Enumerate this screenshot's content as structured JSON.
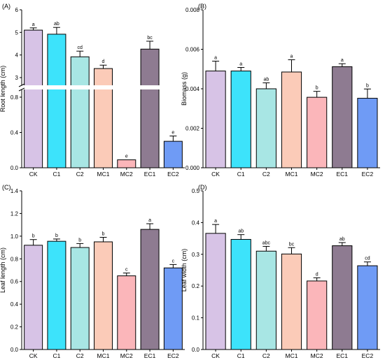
{
  "chart_data": [
    {
      "type": "bar",
      "panel": "(A)",
      "categories": [
        "CK",
        "C1",
        "C2",
        "MC1",
        "MC2",
        "EC1",
        "EC2"
      ],
      "values": [
        5.1,
        4.92,
        3.92,
        3.4,
        0.09,
        4.26,
        0.3
      ],
      "errors": [
        0.1,
        0.3,
        0.25,
        0.15,
        0.0,
        0.35,
        0.06
      ],
      "letters": [
        "a",
        "ab",
        "cd",
        "d",
        "e",
        "bc",
        "e"
      ],
      "ylabel": "Root length (cm)",
      "broken_axis": true,
      "lower_range": [
        0,
        0.8
      ],
      "upper_range": [
        3,
        6
      ],
      "lower_ticks": [
        "0.0",
        "0.4",
        "0.8"
      ],
      "upper_ticks": [
        "3",
        "4",
        "5",
        "6"
      ]
    },
    {
      "type": "bar",
      "panel": "(B)",
      "categories": [
        "CK",
        "C1",
        "C2",
        "MC1",
        "MC2",
        "EC1",
        "EC2"
      ],
      "values": [
        0.0049,
        0.0049,
        0.004,
        0.00485,
        0.00357,
        0.00512,
        0.00352
      ],
      "errors": [
        0.0005,
        0.00018,
        0.0003,
        0.00062,
        0.0003,
        0.00015,
        0.00047
      ],
      "letters": [
        "a",
        "a",
        "ab",
        "a",
        "b",
        "a",
        "b"
      ],
      "ylabel": "Biomass (g)",
      "ylim": [
        0,
        0.008
      ],
      "yticks": [
        "0.000",
        "0.002",
        "0.004",
        "0.006",
        "0.008"
      ]
    },
    {
      "type": "bar",
      "panel": "(C)",
      "categories": [
        "CK",
        "C1",
        "C2",
        "MC1",
        "MC2",
        "EC1",
        "EC2"
      ],
      "values": [
        0.92,
        0.955,
        0.9,
        0.95,
        0.65,
        1.06,
        0.72
      ],
      "errors": [
        0.05,
        0.02,
        0.035,
        0.04,
        0.025,
        0.05,
        0.03
      ],
      "letters": [
        "b",
        "b",
        "b",
        "b",
        "c",
        "a",
        "c"
      ],
      "ylabel": "Leaf length (cm)",
      "ylim": [
        0,
        1.4
      ],
      "yticks": [
        "0.0",
        "0.2",
        "0.4",
        "0.6",
        "0.8",
        "1.0",
        "1.2",
        "1.4"
      ]
    },
    {
      "type": "bar",
      "panel": "(D)",
      "categories": [
        "CK",
        "C1",
        "C2",
        "MC1",
        "MC2",
        "EC1",
        "EC2"
      ],
      "values": [
        0.366,
        0.347,
        0.31,
        0.301,
        0.216,
        0.327,
        0.264
      ],
      "errors": [
        0.028,
        0.015,
        0.015,
        0.02,
        0.01,
        0.01,
        0.012
      ],
      "letters": [
        "a",
        "ab",
        "abc",
        "bc",
        "d",
        "ab",
        "cd"
      ],
      "ylabel": "Leaf width (cm)",
      "ylim": [
        0,
        0.5
      ],
      "yticks": [
        "0.0",
        "0.1",
        "0.2",
        "0.3",
        "0.4",
        "0.5"
      ]
    }
  ],
  "colors": [
    "#d7c3e6",
    "#3de3fb",
    "#a8e6e4",
    "#fbcbb8",
    "#fbb6ba",
    "#8e7b91",
    "#6f9bf5"
  ]
}
